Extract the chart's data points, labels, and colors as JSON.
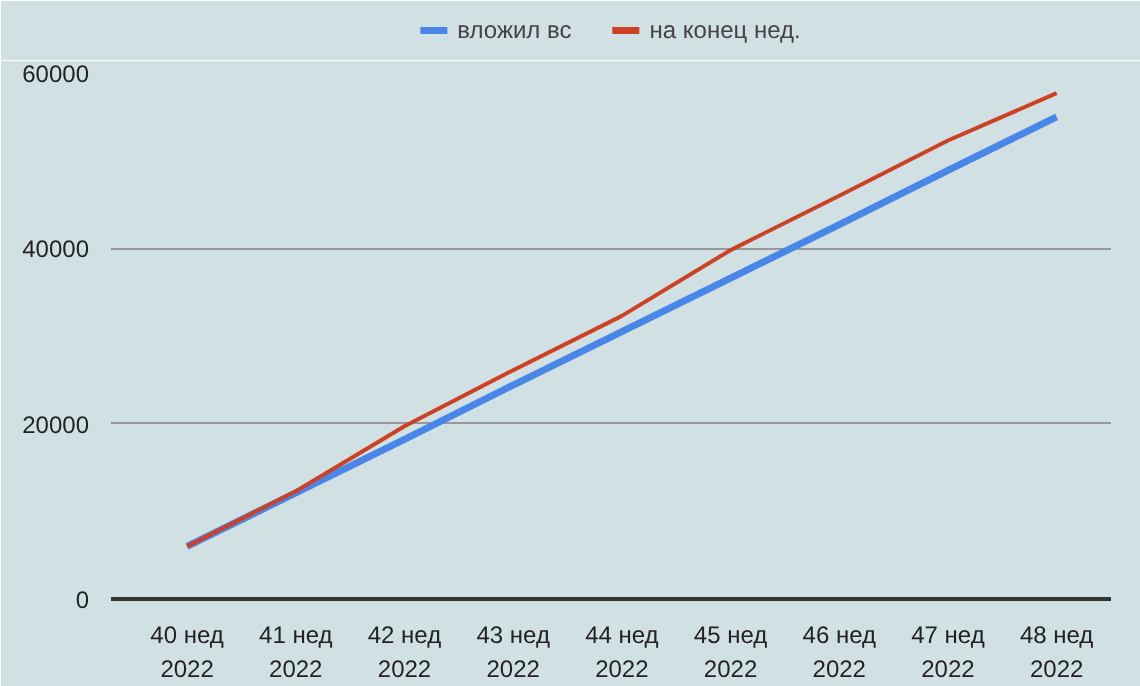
{
  "chart_data": {
    "type": "line",
    "categories": [
      "40 нед\n2022",
      "41 нед\n2022",
      "42 нед\n2022",
      "43 нед\n2022",
      "44 нед\n2022",
      "45 нед\n2022",
      "46 нед\n2022",
      "47 нед\n2022",
      "48 нед\n2022"
    ],
    "series": [
      {
        "name": "вложил вс",
        "color": "#4a86e8",
        "values": [
          6000,
          12100,
          18200,
          24400,
          30500,
          36600,
          42700,
          48900,
          55000
        ]
      },
      {
        "name": "на конец нед.",
        "color": "#cc4125",
        "values": [
          6000,
          12300,
          19700,
          26100,
          32300,
          39800,
          46000,
          52300,
          57700
        ]
      }
    ],
    "ylim": [
      0,
      60000
    ],
    "yticks": [
      0,
      20000,
      40000,
      60000
    ],
    "grid": "y",
    "legend": "top",
    "marker": "none",
    "line_style": "solid"
  }
}
